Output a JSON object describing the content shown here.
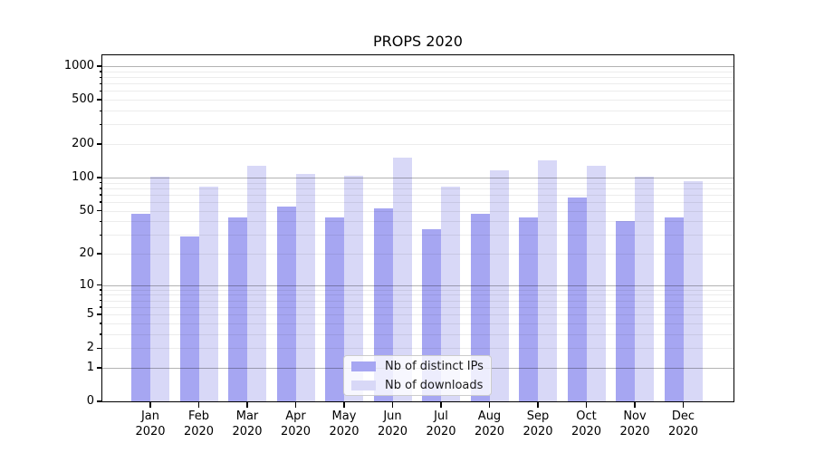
{
  "chart_data": {
    "type": "bar",
    "title": "PROPS 2020",
    "categories": [
      "Jan 2020",
      "Feb 2020",
      "Mar 2020",
      "Apr 2020",
      "May 2020",
      "Jun 2020",
      "Jul 2020",
      "Aug 2020",
      "Sep 2020",
      "Oct 2020",
      "Nov 2020",
      "Dec 2020"
    ],
    "x_tick_line1": [
      "Jan",
      "Feb",
      "Mar",
      "Apr",
      "May",
      "Jun",
      "Jul",
      "Aug",
      "Sep",
      "Oct",
      "Nov",
      "Dec"
    ],
    "x_tick_line2": "2020",
    "series": [
      {
        "name": "Nb of distinct IPs",
        "color": "#a6a6f2",
        "values": [
          47,
          29,
          43,
          54,
          43,
          52,
          34,
          47,
          43,
          66,
          40,
          43
        ]
      },
      {
        "name": "Nb of downloads",
        "color": "#d8d8f7",
        "values": [
          101,
          82,
          127,
          107,
          104,
          150,
          83,
          116,
          143,
          127,
          101,
          92
        ]
      }
    ],
    "yscale": "log1p",
    "ylim": [
      0,
      1250
    ],
    "y_tick_values": [
      0,
      1,
      2,
      5,
      10,
      20,
      50,
      100,
      200,
      500,
      1000
    ],
    "y_tick_labels": [
      "0",
      "1",
      "2",
      "5",
      "10",
      "20",
      "50",
      "100",
      "200",
      "500",
      "1000"
    ],
    "grid": {
      "enabled": true,
      "major_at": [
        1,
        10,
        100,
        1000
      ],
      "minor_factors": [
        2,
        3,
        4,
        5,
        6,
        7,
        8,
        9
      ],
      "minor_decades": [
        1,
        10,
        100
      ],
      "major_color": "#b3b3b3",
      "minor_color": "#ececec"
    },
    "legend_position": "lower center",
    "axis_color": "#000000",
    "background_color": "#ffffff"
  }
}
